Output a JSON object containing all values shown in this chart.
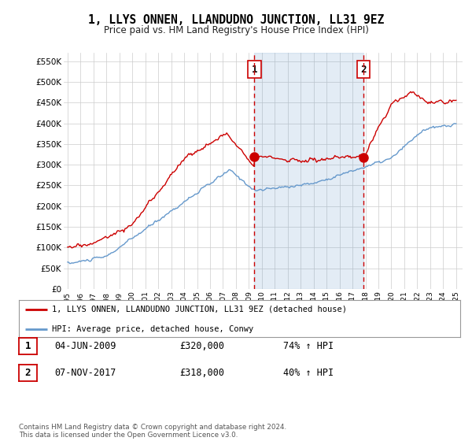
{
  "title": "1, LLYS ONNEN, LLANDUDNO JUNCTION, LL31 9EZ",
  "subtitle": "Price paid vs. HM Land Registry's House Price Index (HPI)",
  "legend_line1": "1, LLYS ONNEN, LLANDUDNO JUNCTION, LL31 9EZ (detached house)",
  "legend_line2": "HPI: Average price, detached house, Conwy",
  "sale1_label": "1",
  "sale1_date": "04-JUN-2009",
  "sale1_price": "£320,000",
  "sale1_hpi": "74% ↑ HPI",
  "sale1_year": 2009.43,
  "sale1_value": 320000,
  "sale2_label": "2",
  "sale2_date": "07-NOV-2017",
  "sale2_price": "£318,000",
  "sale2_hpi": "40% ↑ HPI",
  "sale2_year": 2017.85,
  "sale2_value": 318000,
  "ylim": [
    0,
    570000
  ],
  "yticks": [
    0,
    50000,
    100000,
    150000,
    200000,
    250000,
    300000,
    350000,
    400000,
    450000,
    500000,
    550000
  ],
  "red_color": "#cc0000",
  "blue_color": "#6699cc",
  "blue_fill": "#ddeeff",
  "vline_color": "#cc0000",
  "background_color": "#ffffff",
  "grid_color": "#cccccc",
  "footer": "Contains HM Land Registry data © Crown copyright and database right 2024.\nThis data is licensed under the Open Government Licence v3.0.",
  "xstart": 1995,
  "xend": 2025
}
